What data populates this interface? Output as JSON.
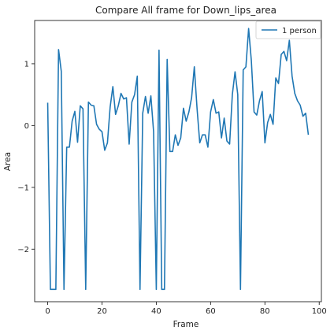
{
  "chart_data": {
    "type": "line",
    "title": "Compare All frame for Down_lips_area",
    "xlabel": "Frame",
    "ylabel": "Area",
    "xlim": [
      -4.8,
      100.8
    ],
    "ylim": [
      -2.85,
      1.7
    ],
    "xticks": [
      0,
      20,
      40,
      60,
      80,
      100
    ],
    "yticks": [
      -2,
      -1,
      0,
      1
    ],
    "ytick_labels": [
      "−2",
      "−1",
      "0",
      "1"
    ],
    "grid": false,
    "legend_position": "upper-right",
    "colors": {
      "series": "#1f77b4"
    },
    "series": [
      {
        "name": "1 person",
        "x": [
          0,
          1,
          2,
          3,
          4,
          5,
          6,
          7,
          8,
          9,
          10,
          11,
          12,
          13,
          14,
          15,
          16,
          17,
          18,
          19,
          20,
          21,
          22,
          23,
          24,
          25,
          26,
          27,
          28,
          29,
          30,
          31,
          32,
          33,
          34,
          35,
          36,
          37,
          38,
          39,
          40,
          41,
          42,
          43,
          44,
          45,
          46,
          47,
          48,
          49,
          50,
          51,
          52,
          53,
          54,
          55,
          56,
          57,
          58,
          59,
          60,
          61,
          62,
          63,
          64,
          65,
          66,
          67,
          68,
          69,
          70,
          71,
          72,
          73,
          74,
          75,
          76,
          77,
          78,
          79,
          80,
          81,
          82,
          83,
          84,
          85,
          86,
          87,
          88,
          89,
          90,
          91,
          92,
          93,
          94,
          95,
          96
        ],
        "y": [
          0.37,
          -2.65,
          -2.65,
          -2.65,
          1.23,
          0.88,
          -2.65,
          -0.35,
          -0.35,
          0.07,
          0.23,
          -0.27,
          0.32,
          0.27,
          -2.65,
          0.38,
          0.33,
          0.32,
          0.02,
          -0.06,
          -0.1,
          -0.4,
          -0.28,
          0.3,
          0.63,
          0.18,
          0.32,
          0.52,
          0.43,
          0.45,
          -0.3,
          0.38,
          0.5,
          0.8,
          -2.65,
          0.2,
          0.47,
          0.2,
          0.48,
          -0.1,
          -2.65,
          1.22,
          -2.65,
          -2.65,
          1.07,
          -0.42,
          -0.42,
          -0.15,
          -0.32,
          -0.2,
          0.28,
          0.07,
          0.22,
          0.45,
          0.95,
          0.28,
          -0.28,
          -0.15,
          -0.15,
          -0.35,
          0.22,
          0.42,
          0.2,
          0.22,
          -0.2,
          0.12,
          -0.25,
          -0.3,
          0.5,
          0.87,
          0.5,
          -2.65,
          0.9,
          0.95,
          1.57,
          1.05,
          0.22,
          0.17,
          0.4,
          0.55,
          -0.28,
          0.05,
          0.18,
          0.02,
          0.77,
          0.68,
          1.15,
          1.2,
          1.05,
          1.38,
          0.8,
          0.52,
          0.4,
          0.33,
          0.15,
          0.2,
          -0.15
        ]
      }
    ]
  }
}
